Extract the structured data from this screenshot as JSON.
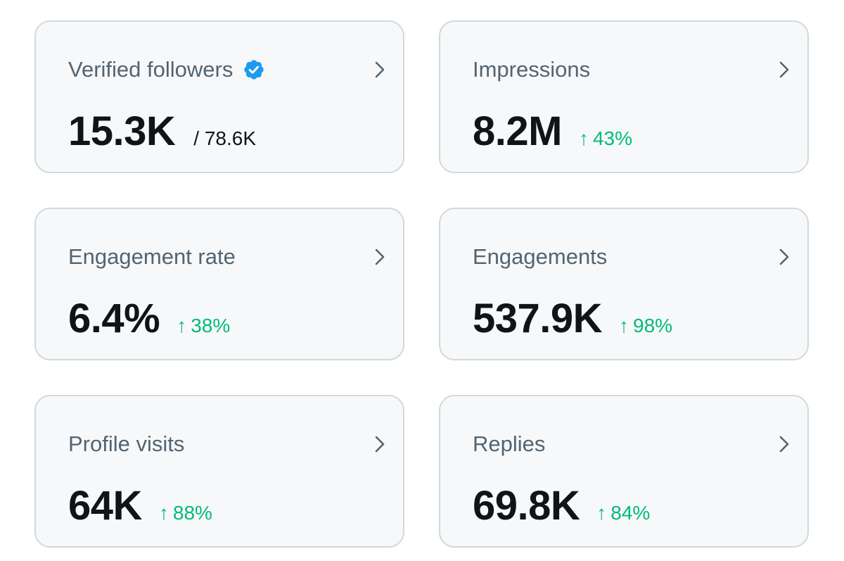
{
  "colors": {
    "card_bg": "#f7f8f9",
    "card_border": "#cfd9de",
    "title": "#536471",
    "value": "#0f1419",
    "positive": "#00ba7c",
    "verified": "#1d9bf0"
  },
  "cards": [
    {
      "title": "Verified followers",
      "value": "15.3K",
      "secondary": "/ 78.6K",
      "verified_icon": "verified-badge-icon"
    },
    {
      "title": "Impressions",
      "value": "8.2M",
      "delta_arrow": "↑",
      "delta": "43%"
    },
    {
      "title": "Engagement rate",
      "value": "6.4%",
      "delta_arrow": "↑",
      "delta": "38%"
    },
    {
      "title": "Engagements",
      "value": "537.9K",
      "delta_arrow": "↑",
      "delta": "98%"
    },
    {
      "title": "Profile visits",
      "value": "64K",
      "delta_arrow": "↑",
      "delta": "88%"
    },
    {
      "title": "Replies",
      "value": "69.8K",
      "delta_arrow": "↑",
      "delta": "84%"
    }
  ],
  "icons": {
    "chevron": "chevron-right-icon",
    "trend": "arrow-up-icon"
  }
}
